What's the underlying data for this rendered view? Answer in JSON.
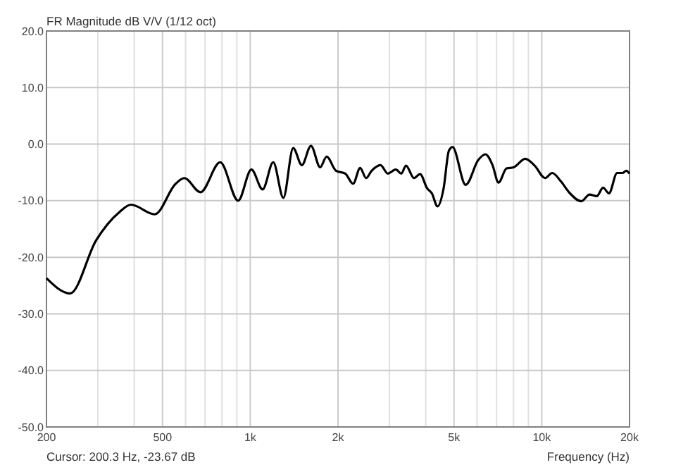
{
  "chart_data": {
    "type": "line",
    "title": "FR Magnitude dB V/V (1/12 oct)",
    "xlabel": "Frequency (Hz)",
    "annotations": [
      "Cursor: 200.3 Hz, -23.67 dB"
    ],
    "log": "x",
    "grid": true,
    "marker": "none",
    "line_style": "solid",
    "xlim": [
      200,
      20000
    ],
    "ylim": [
      -50,
      20
    ],
    "xticks": [
      200,
      {
        "value": 300,
        "label": null
      },
      {
        "value": 400,
        "label": null
      },
      500,
      {
        "value": 600,
        "label": null
      },
      {
        "value": 700,
        "label": null
      },
      {
        "value": 800,
        "label": null
      },
      {
        "value": 900,
        "label": null
      },
      {
        "value": 1000,
        "label": "1k"
      },
      {
        "value": 2000,
        "label": "2k"
      },
      {
        "value": 3000,
        "label": null
      },
      {
        "value": 4000,
        "label": null
      },
      {
        "value": 5000,
        "label": "5k"
      },
      {
        "value": 6000,
        "label": null
      },
      {
        "value": 7000,
        "label": null
      },
      {
        "value": 8000,
        "label": null
      },
      {
        "value": 9000,
        "label": null
      },
      {
        "value": 10000,
        "label": "10k"
      },
      {
        "value": 20000,
        "label": "20k"
      }
    ],
    "yticks": [
      {
        "value": -50,
        "label": "-50.0"
      },
      {
        "value": -40,
        "label": "-40.0"
      },
      {
        "value": -30,
        "label": "-30.0"
      },
      {
        "value": -20,
        "label": "-20.0"
      },
      {
        "value": -10,
        "label": "-10.0"
      },
      {
        "value": 0,
        "label": "0.0"
      },
      {
        "value": 10,
        "label": "10.0"
      },
      {
        "value": 20,
        "label": "20.0"
      }
    ],
    "series": [
      {
        "color": "#000000",
        "x": [
          200,
          241,
          296,
          356,
          390,
          470,
          555,
          594,
          675,
          789,
          909,
          1009,
          1103,
          1199,
          1299,
          1404,
          1503,
          1616,
          1737,
          1828,
          1968,
          2118,
          2254,
          2382,
          2497,
          2609,
          2797,
          2964,
          3156,
          3298,
          3422,
          3645,
          3825,
          4042,
          4197,
          4389,
          4606,
          4800,
          4939,
          5483,
          6057,
          6405,
          6777,
          7106,
          7570,
          8003,
          8776,
          9455,
          10270,
          10860,
          11640,
          12400,
          13680,
          14590,
          15440,
          16230,
          17000,
          18130,
          18900,
          19500,
          20000
        ],
        "values": [
          -23.7,
          -26.4,
          -17,
          -12,
          -10.7,
          -12.4,
          -7,
          -6,
          -8.5,
          -3.2,
          -10,
          -4.5,
          -8,
          -3.2,
          -9.5,
          -0.7,
          -3.7,
          -0.3,
          -4.1,
          -2.2,
          -4.7,
          -5.2,
          -7,
          -4.2,
          -6,
          -4.7,
          -3.7,
          -5.2,
          -4.5,
          -5.2,
          -3.8,
          -6,
          -5.3,
          -7.8,
          -8.7,
          -11,
          -7.8,
          -1.2,
          -0.5,
          -7.2,
          -2.8,
          -1.8,
          -3.7,
          -6.8,
          -4.3,
          -4.1,
          -2.6,
          -3.8,
          -6,
          -5.1,
          -6.6,
          -8.5,
          -10.1,
          -8.9,
          -9.2,
          -7.7,
          -8.7,
          -5.1,
          -5.1,
          -4.7,
          -5.2
        ]
      }
    ]
  }
}
